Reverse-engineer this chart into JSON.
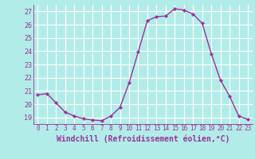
{
  "x": [
    0,
    1,
    2,
    3,
    4,
    5,
    6,
    7,
    8,
    9,
    10,
    11,
    12,
    13,
    14,
    15,
    16,
    17,
    18,
    19,
    20,
    21,
    22,
    23
  ],
  "y": [
    20.7,
    20.8,
    20.1,
    19.4,
    19.1,
    18.9,
    18.8,
    18.75,
    19.1,
    19.75,
    21.6,
    23.95,
    26.3,
    26.6,
    26.65,
    27.2,
    27.1,
    26.8,
    26.1,
    23.8,
    21.8,
    20.6,
    19.1,
    18.85
  ],
  "line_color": "#993399",
  "marker": "D",
  "marker_size": 2.2,
  "linewidth": 1.0,
  "xlabel": "Windchill (Refroidissement éolien,°C)",
  "xlabel_fontsize": 7,
  "bg_color": "#b2ece8",
  "grid_color": "#ffffff",
  "tick_color": "#993399",
  "ylim": [
    18.5,
    27.5
  ],
  "yticks": [
    19,
    20,
    21,
    22,
    23,
    24,
    25,
    26,
    27
  ],
  "xlim": [
    -0.5,
    23.5
  ],
  "xticks": [
    0,
    1,
    2,
    3,
    4,
    5,
    6,
    7,
    8,
    9,
    10,
    11,
    12,
    13,
    14,
    15,
    16,
    17,
    18,
    19,
    20,
    21,
    22,
    23
  ]
}
